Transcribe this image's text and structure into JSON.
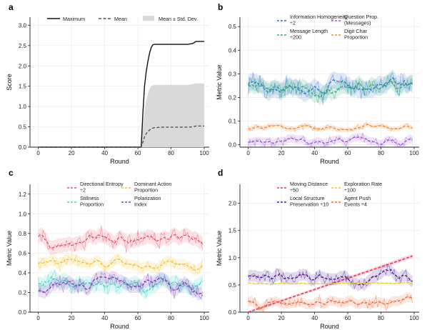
{
  "chart_data": [
    {
      "panel": "a",
      "type": "line",
      "xlabel": "Round",
      "ylabel": "Score",
      "xlim": [
        -5,
        103
      ],
      "ylim": [
        0,
        3.2
      ],
      "xticks": [
        0,
        20,
        40,
        60,
        80,
        100
      ],
      "yticks": [
        0.0,
        0.5,
        1.0,
        1.5,
        2.0,
        2.5,
        3.0
      ],
      "grid": true,
      "legend": "top (horizontal)",
      "series": [
        {
          "name": "Maximum",
          "style": "solid",
          "color": "#111111",
          "x": [
            0,
            60,
            62,
            63,
            64,
            65,
            66,
            67,
            68,
            69,
            70,
            75,
            80,
            85,
            90,
            93,
            95,
            100
          ],
          "y": [
            0,
            0,
            0,
            0.8,
            1.5,
            1.85,
            2.1,
            2.3,
            2.45,
            2.52,
            2.53,
            2.53,
            2.53,
            2.53,
            2.53,
            2.55,
            2.6,
            2.6
          ]
        },
        {
          "name": "Mean",
          "style": "dashed",
          "color": "#555555",
          "x": [
            0,
            60,
            62,
            63,
            64,
            65,
            66,
            67,
            68,
            69,
            70,
            75,
            80,
            85,
            90,
            93,
            95,
            100
          ],
          "y": [
            0,
            0,
            0,
            0.12,
            0.25,
            0.33,
            0.38,
            0.42,
            0.45,
            0.47,
            0.48,
            0.49,
            0.49,
            0.49,
            0.49,
            0.5,
            0.52,
            0.52
          ]
        },
        {
          "name": "Mean ± Std. Dev.",
          "style": "band",
          "color": "#d9d9d9",
          "x": [
            0,
            60,
            62,
            63,
            64,
            65,
            66,
            67,
            68,
            69,
            70,
            75,
            80,
            85,
            90,
            93,
            95,
            100
          ],
          "upper": [
            0,
            0,
            0,
            0.5,
            0.9,
            1.15,
            1.3,
            1.42,
            1.5,
            1.52,
            1.53,
            1.53,
            1.53,
            1.53,
            1.53,
            1.55,
            1.57,
            1.57
          ],
          "lower": [
            0,
            0,
            0,
            0,
            0,
            0,
            0,
            0,
            0,
            0,
            0,
            0,
            0,
            0,
            0,
            0,
            0,
            0
          ]
        }
      ]
    },
    {
      "panel": "b",
      "type": "line",
      "xlabel": "Round",
      "ylabel": "Metric Value",
      "xlim": [
        -5,
        103
      ],
      "ylim": [
        -0.01,
        0.54
      ],
      "xticks": [
        0,
        20,
        40,
        60,
        80,
        100
      ],
      "yticks": [
        0.0,
        0.1,
        0.2,
        0.3,
        0.4,
        0.5
      ],
      "grid": true,
      "legend": "top",
      "series": [
        {
          "name": "Information Homogeneity ÷2",
          "color": "#2f6fd0",
          "base": 0.26,
          "amp": 0.04,
          "seed": 3
        },
        {
          "name": "Message Length ÷200",
          "color": "#2ea87e",
          "base": 0.24,
          "amp": 0.035,
          "seed": 7
        },
        {
          "name": "Question Prop. (Messages)",
          "color": "#9b59d6",
          "base": 0.015,
          "amp": 0.02,
          "seed": 11
        },
        {
          "name": "Digit Char Proportion",
          "color": "#f28a3c",
          "base": 0.075,
          "amp": 0.012,
          "seed": 17
        }
      ]
    },
    {
      "panel": "c",
      "type": "line",
      "xlabel": "Round",
      "ylabel": "Metric Value",
      "xlim": [
        -5,
        103
      ],
      "ylim": [
        0,
        1.3
      ],
      "xticks": [
        0,
        20,
        40,
        60,
        80,
        100
      ],
      "yticks": [
        0.0,
        0.2,
        0.4,
        0.6,
        0.8,
        1.0,
        1.2
      ],
      "grid": true,
      "legend": "top",
      "series": [
        {
          "name": "Directional Entropy ÷2",
          "color": "#e8506a",
          "base": 0.75,
          "amp": 0.08,
          "seed": 5
        },
        {
          "name": "Stillness Proportion",
          "color": "#3fd6c0",
          "base": 0.28,
          "amp": 0.08,
          "seed": 13
        },
        {
          "name": "Dominant Action Proportion",
          "color": "#f2c330",
          "base": 0.48,
          "amp": 0.06,
          "seed": 19
        },
        {
          "name": "Polarization Index",
          "color": "#7b3fb8",
          "base": 0.28,
          "amp": 0.07,
          "seed": 23
        }
      ]
    },
    {
      "panel": "d",
      "type": "line",
      "xlabel": "Round",
      "ylabel": "Metric Value",
      "xlim": [
        -5,
        103
      ],
      "ylim": [
        0,
        2.35
      ],
      "xticks": [
        0,
        20,
        40,
        60,
        80,
        100
      ],
      "yticks": [
        0.0,
        0.5,
        1.0,
        1.5,
        2.0
      ],
      "grid": true,
      "legend": "top",
      "series": [
        {
          "name": "Moving Distance ÷50",
          "color": "#e03a5c",
          "trend": "linear",
          "from": 0.0,
          "to": 1.03
        },
        {
          "name": "Local Structure Preservation ÷10",
          "color": "#4b1f8e",
          "base": 0.65,
          "amp": 0.12,
          "seed": 29
        },
        {
          "name": "Exploration Rate ÷100",
          "color": "#f2c330",
          "base": 0.53,
          "amp": 0.01,
          "seed": 31
        },
        {
          "name": "Agent Push Events ÷4",
          "color": "#f2683c",
          "base": 0.18,
          "amp": 0.1,
          "seed": 37
        }
      ]
    }
  ]
}
